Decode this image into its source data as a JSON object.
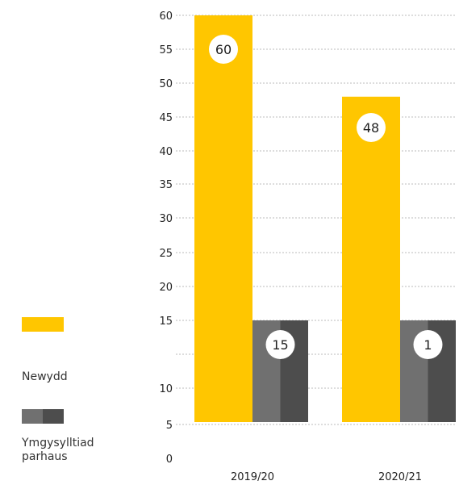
{
  "chart_data": {
    "type": "bar",
    "categories": [
      "2019/20",
      "2020/21"
    ],
    "series": [
      {
        "name": "Newydd",
        "values": [
          60,
          48
        ],
        "color": "#FFC600"
      },
      {
        "name": "Ymgysylltiad parhaus",
        "values": [
          15,
          1
        ],
        "color": "#5a5a5a"
      }
    ],
    "ylim": [
      0,
      60
    ],
    "tick_labels": [
      "0",
      "5",
      "10",
      "15",
      "20",
      "25",
      "30",
      "35",
      "40",
      "45",
      "50",
      "55",
      "60"
    ],
    "grid": true,
    "legend_position": "left"
  },
  "legend": {
    "items": [
      {
        "label": "Newydd",
        "color": "#FFC600"
      },
      {
        "label": "Ymgysylltiad parhaus",
        "color": "#5a5a5a"
      }
    ]
  },
  "colors": {
    "primary": "#FFC600",
    "secondary_light": "#707070",
    "secondary_dark": "#4d4d4d",
    "grid": "#bbbbbb"
  }
}
